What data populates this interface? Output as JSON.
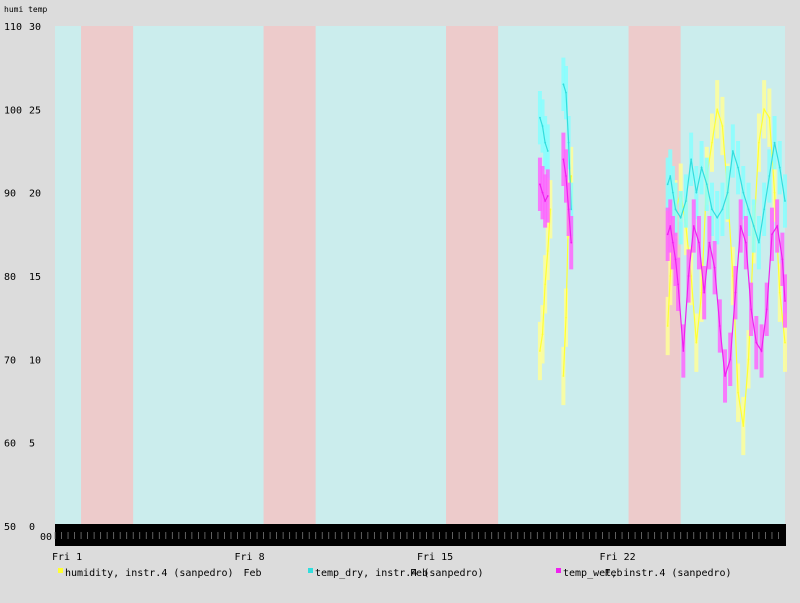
{
  "chart_data": {
    "type": "line",
    "axis_header": "humi temp",
    "x_range_days": [
      0,
      28
    ],
    "y_left_label": "humi",
    "y_left_range": [
      50,
      110
    ],
    "y_left_ticks": [
      "110",
      "100",
      "90",
      "80",
      "70",
      "60",
      "50"
    ],
    "y_right_label": "temp",
    "y_right_range": [
      0,
      30
    ],
    "y_right_ticks": [
      "30",
      "25",
      "20",
      "15",
      "10",
      "5",
      "0"
    ],
    "x_ticks": [
      {
        "day": 0,
        "label": "Fri 1"
      },
      {
        "day": 7,
        "label": "Fri 8"
      },
      {
        "day": 14,
        "label": "Fri 15"
      },
      {
        "day": 21,
        "label": "Fri 22"
      }
    ],
    "month_label": "Feb",
    "first_hour_label": "00",
    "background_bands": [
      {
        "start": 0,
        "end": 1,
        "kind": "weekday"
      },
      {
        "start": 1,
        "end": 3,
        "kind": "weekend"
      },
      {
        "start": 3,
        "end": 8,
        "kind": "weekday"
      },
      {
        "start": 8,
        "end": 10,
        "kind": "weekend"
      },
      {
        "start": 10,
        "end": 15,
        "kind": "weekday"
      },
      {
        "start": 15,
        "end": 17,
        "kind": "weekend"
      },
      {
        "start": 17,
        "end": 22,
        "kind": "weekday"
      },
      {
        "start": 22,
        "end": 24,
        "kind": "weekend"
      },
      {
        "start": 24,
        "end": 28,
        "kind": "weekday"
      }
    ],
    "colors": {
      "weekday": "#cbeded",
      "weekend": "#edcbcb",
      "humidity": "#ffff33",
      "humidity_band": "#ffff99",
      "temp_dry": "#33dddd",
      "temp_dry_band": "#88ffff",
      "temp_wet": "#ee22ee",
      "temp_wet_band": "#ff66ff"
    },
    "series": [
      {
        "name": "humidity, instr.4 (sanpedro)",
        "axis": "left",
        "color_key": "humidity",
        "segments": [
          [
            [
              18.6,
              71
            ],
            [
              18.7,
              73
            ],
            [
              18.8,
              79
            ],
            [
              18.9,
              83
            ],
            [
              19.0,
              88
            ]
          ],
          [
            [
              19.5,
              68
            ],
            [
              19.6,
              75
            ],
            [
              19.7,
              88
            ],
            [
              19.8,
              92
            ]
          ],
          [
            [
              23.5,
              74
            ],
            [
              23.6,
              80
            ],
            [
              23.7,
              85
            ],
            [
              23.8,
              88
            ],
            [
              24.0,
              90
            ],
            [
              24.2,
              86
            ],
            [
              24.4,
              80
            ],
            [
              24.6,
              72
            ],
            [
              24.8,
              78
            ],
            [
              25.0,
              92
            ],
            [
              25.2,
              96
            ],
            [
              25.4,
              100
            ],
            [
              25.6,
              98
            ],
            [
              25.8,
              90
            ],
            [
              26.0,
              80
            ],
            [
              26.2,
              66
            ],
            [
              26.4,
              62
            ],
            [
              26.6,
              70
            ],
            [
              26.8,
              85
            ],
            [
              27.0,
              96
            ],
            [
              27.2,
              100
            ],
            [
              27.4,
              99
            ],
            [
              27.6,
              90
            ],
            [
              27.8,
              78
            ],
            [
              28.0,
              72
            ]
          ]
        ]
      },
      {
        "name": "temp_dry, instr.4 (sanpedro)",
        "axis": "right",
        "color_key": "temp_dry",
        "segments": [
          [
            [
              18.6,
              24.5
            ],
            [
              18.7,
              24.0
            ],
            [
              18.8,
              23.0
            ],
            [
              18.9,
              22.5
            ]
          ],
          [
            [
              19.5,
              26.5
            ],
            [
              19.6,
              26.0
            ],
            [
              19.7,
              23.0
            ],
            [
              19.8,
              19.0
            ]
          ],
          [
            [
              23.5,
              20.5
            ],
            [
              23.6,
              21.0
            ],
            [
              23.7,
              20.0
            ],
            [
              23.8,
              19.0
            ],
            [
              24.0,
              18.5
            ],
            [
              24.2,
              19.5
            ],
            [
              24.4,
              22.0
            ],
            [
              24.6,
              20.0
            ],
            [
              24.8,
              21.5
            ],
            [
              25.0,
              20.5
            ],
            [
              25.2,
              19.0
            ],
            [
              25.4,
              18.5
            ],
            [
              25.6,
              19.0
            ],
            [
              25.8,
              20.0
            ],
            [
              26.0,
              22.5
            ],
            [
              26.2,
              21.5
            ],
            [
              26.4,
              20.0
            ],
            [
              26.6,
              19.0
            ],
            [
              26.8,
              18.0
            ],
            [
              27.0,
              17.0
            ],
            [
              27.2,
              19.0
            ],
            [
              27.4,
              21.0
            ],
            [
              27.6,
              23.0
            ],
            [
              27.8,
              21.5
            ],
            [
              28.0,
              19.5
            ]
          ]
        ]
      },
      {
        "name": "temp_wet, instr.4 (sanpedro)",
        "axis": "right",
        "color_key": "temp_wet",
        "segments": [
          [
            [
              18.6,
              20.5
            ],
            [
              18.7,
              20.0
            ],
            [
              18.8,
              19.5
            ],
            [
              18.9,
              19.8
            ]
          ],
          [
            [
              19.5,
              22.0
            ],
            [
              19.6,
              21.0
            ],
            [
              19.7,
              19.0
            ],
            [
              19.8,
              17.0
            ]
          ],
          [
            [
              23.5,
              17.5
            ],
            [
              23.6,
              18.0
            ],
            [
              23.7,
              17.0
            ],
            [
              23.8,
              16.0
            ],
            [
              23.9,
              14.5
            ],
            [
              24.1,
              10.5
            ],
            [
              24.3,
              15.0
            ],
            [
              24.5,
              18.0
            ],
            [
              24.7,
              17.0
            ],
            [
              24.9,
              14.0
            ],
            [
              25.1,
              17.0
            ],
            [
              25.3,
              15.5
            ],
            [
              25.5,
              12.0
            ],
            [
              25.7,
              9.0
            ],
            [
              25.9,
              10.0
            ],
            [
              26.1,
              14.0
            ],
            [
              26.3,
              18.0
            ],
            [
              26.5,
              17.0
            ],
            [
              26.7,
              13.0
            ],
            [
              26.9,
              11.0
            ],
            [
              27.1,
              10.5
            ],
            [
              27.3,
              13.0
            ],
            [
              27.5,
              17.5
            ],
            [
              27.7,
              18.0
            ],
            [
              27.9,
              16.0
            ],
            [
              28.0,
              13.5
            ]
          ]
        ]
      }
    ],
    "legend": [
      {
        "label": "humidity, instr.4 (sanpedro)",
        "color_key": "humidity"
      },
      {
        "label": "temp_dry, instr.4 (sanpedro)",
        "color_key": "temp_dry"
      },
      {
        "label": "temp_wet, instr.4 (sanpedro)",
        "color_key": "temp_wet"
      }
    ],
    "grid": false
  }
}
